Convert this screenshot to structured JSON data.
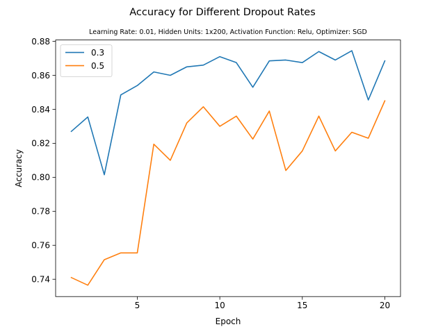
{
  "chart_data": {
    "type": "line",
    "title": "Accuracy for Different Dropout Rates",
    "subtitle": "Learning Rate: 0.01, Hidden Units: 1x200, Activation Function: Relu, Optimizer: SGD",
    "xlabel": "Epoch",
    "ylabel": "Accuracy",
    "xlim": [
      0.05,
      20.95
    ],
    "ylim": [
      0.7298,
      0.8808
    ],
    "xticks": [
      5,
      10,
      15,
      20
    ],
    "yticks": [
      0.74,
      0.76,
      0.78,
      0.8,
      0.82,
      0.84,
      0.86,
      0.88
    ],
    "ytick_labels": [
      "0.74",
      "0.76",
      "0.78",
      "0.80",
      "0.82",
      "0.84",
      "0.86",
      "0.88"
    ],
    "grid": false,
    "legend_position": "top-left",
    "x": [
      1,
      2,
      3,
      4,
      5,
      6,
      7,
      8,
      9,
      10,
      11,
      12,
      13,
      14,
      15,
      16,
      17,
      18,
      19,
      20
    ],
    "series": [
      {
        "name": "0.3",
        "color": "#1f77b4",
        "values": [
          0.827,
          0.8355,
          0.8015,
          0.8485,
          0.854,
          0.862,
          0.86,
          0.865,
          0.866,
          0.871,
          0.8675,
          0.853,
          0.8685,
          0.869,
          0.8675,
          0.874,
          0.869,
          0.8745,
          0.8455,
          0.8685
        ]
      },
      {
        "name": "0.5",
        "color": "#ff7f0e",
        "values": [
          0.741,
          0.7365,
          0.7515,
          0.7555,
          0.7555,
          0.8195,
          0.81,
          0.832,
          0.8415,
          0.83,
          0.836,
          0.8225,
          0.839,
          0.804,
          0.8155,
          0.836,
          0.8155,
          0.8265,
          0.823,
          0.845
        ]
      }
    ]
  }
}
